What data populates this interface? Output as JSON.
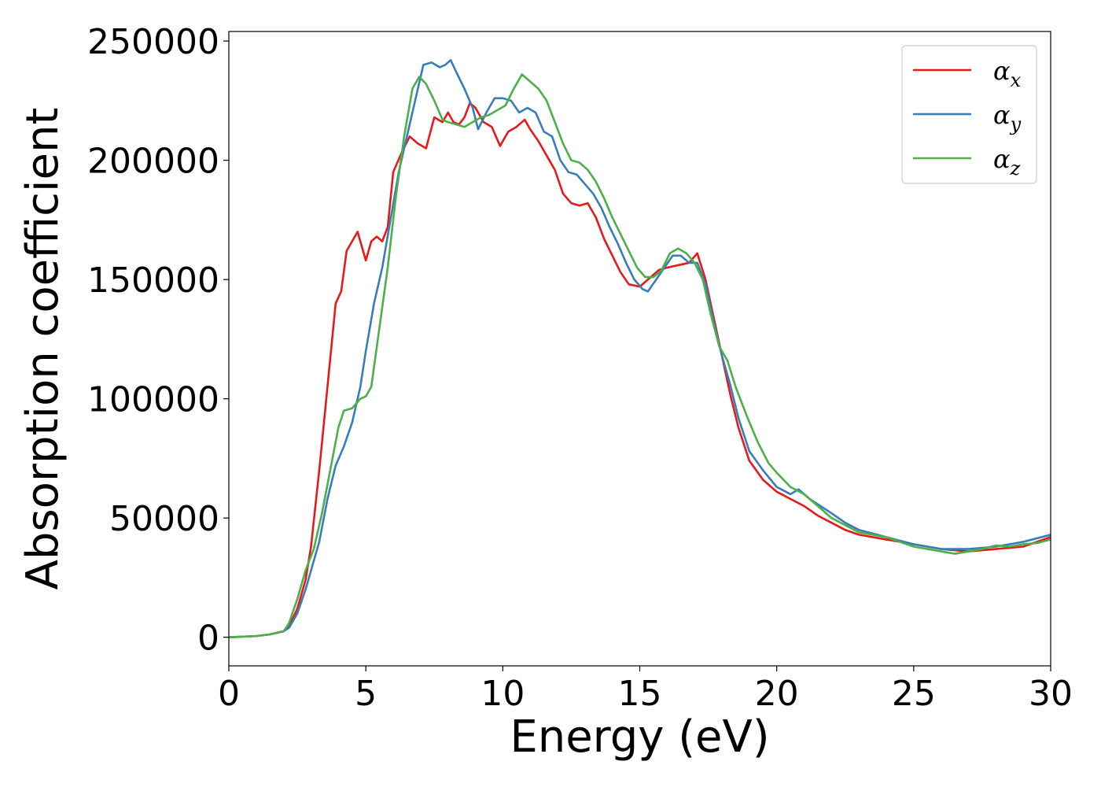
{
  "chart_data": {
    "type": "line",
    "xlabel": "Energy (eV)",
    "ylabel": "Absorption coefficient",
    "xlim": [
      0,
      30
    ],
    "ylim": [
      -12000,
      254000
    ],
    "xticks": [
      0,
      5,
      10,
      15,
      20,
      25,
      30
    ],
    "yticks": [
      0,
      50000,
      100000,
      150000,
      200000,
      250000
    ],
    "grid": false,
    "legend_position": "top-right",
    "series": [
      {
        "name": "α_x",
        "legend_symbol": "α",
        "legend_subscript": "x",
        "color": "#e41a1c",
        "x": [
          0,
          1,
          1.5,
          2,
          2.2,
          2.5,
          2.8,
          3.0,
          3.3,
          3.6,
          3.9,
          4.1,
          4.3,
          4.5,
          4.7,
          4.85,
          5.0,
          5.2,
          5.4,
          5.6,
          5.8,
          6.0,
          6.3,
          6.6,
          6.9,
          7.2,
          7.5,
          7.8,
          8.0,
          8.2,
          8.4,
          8.6,
          8.8,
          9.0,
          9.3,
          9.6,
          9.9,
          10.2,
          10.5,
          10.8,
          11.0,
          11.3,
          11.6,
          11.9,
          12.2,
          12.5,
          12.8,
          13.1,
          13.4,
          13.7,
          14.0,
          14.3,
          14.6,
          15.0,
          15.3,
          15.7,
          16.0,
          16.4,
          16.8,
          17.1,
          17.4,
          17.7,
          18.0,
          18.3,
          18.6,
          19.0,
          19.5,
          20.0,
          20.5,
          21.0,
          21.5,
          22.0,
          22.5,
          23.0,
          24.0,
          25.0,
          26.0,
          27.0,
          28.0,
          29.0,
          30.0
        ],
        "values": [
          0,
          500,
          1200,
          2500,
          4500,
          12000,
          24000,
          38000,
          70000,
          105000,
          140000,
          145000,
          162000,
          166000,
          170000,
          164000,
          158000,
          166000,
          168000,
          166000,
          172000,
          195000,
          203000,
          210000,
          207000,
          205000,
          218000,
          216000,
          220000,
          216000,
          215000,
          218000,
          224000,
          222000,
          216000,
          214000,
          206000,
          212000,
          214000,
          217000,
          213000,
          208000,
          202000,
          196000,
          186000,
          182000,
          181000,
          182000,
          176000,
          167000,
          160000,
          153000,
          148000,
          147000,
          150000,
          154000,
          155000,
          156000,
          157000,
          161000,
          150000,
          134000,
          118000,
          102000,
          88000,
          74000,
          66000,
          61000,
          58000,
          55000,
          51000,
          48000,
          45000,
          43000,
          41000,
          39000,
          37000,
          36000,
          37000,
          38000,
          42000
        ]
      },
      {
        "name": "α_y",
        "legend_symbol": "α",
        "legend_subscript": "y",
        "color": "#377eb8",
        "x": [
          0,
          1,
          1.5,
          2,
          2.2,
          2.5,
          2.8,
          3.0,
          3.3,
          3.6,
          3.9,
          4.2,
          4.5,
          4.8,
          5.0,
          5.3,
          5.6,
          5.9,
          6.2,
          6.5,
          6.8,
          7.1,
          7.4,
          7.7,
          7.9,
          8.1,
          8.3,
          8.6,
          8.9,
          9.1,
          9.4,
          9.7,
          10.0,
          10.3,
          10.6,
          10.9,
          11.2,
          11.5,
          11.8,
          12.1,
          12.4,
          12.7,
          13.0,
          13.3,
          13.6,
          13.9,
          14.2,
          14.5,
          14.8,
          15.1,
          15.3,
          15.6,
          15.9,
          16.2,
          16.5,
          16.8,
          17.1,
          17.4,
          17.7,
          18.0,
          18.3,
          18.6,
          19.0,
          19.5,
          20.0,
          20.5,
          20.8,
          21.2,
          21.6,
          22.0,
          22.5,
          23.0,
          24.0,
          25.0,
          26.0,
          27.0,
          28.0,
          28.5,
          29.0,
          30.0
        ],
        "values": [
          0,
          500,
          1200,
          2500,
          4000,
          10000,
          20000,
          28000,
          40000,
          58000,
          72000,
          80000,
          90000,
          105000,
          120000,
          140000,
          155000,
          175000,
          195000,
          210000,
          225000,
          240000,
          241000,
          239000,
          240000,
          242000,
          237000,
          230000,
          222000,
          213000,
          220000,
          226000,
          226000,
          225000,
          220000,
          222000,
          220000,
          212000,
          210000,
          200000,
          195000,
          194000,
          190000,
          186000,
          180000,
          172000,
          165000,
          157000,
          150000,
          146000,
          145000,
          150000,
          155000,
          160000,
          160000,
          157000,
          157000,
          148000,
          132000,
          118000,
          106000,
          92000,
          78000,
          70000,
          63000,
          60000,
          62000,
          58000,
          55000,
          52000,
          48000,
          45000,
          42000,
          39000,
          37000,
          37000,
          38000,
          39000,
          40000,
          43000
        ]
      },
      {
        "name": "α_z",
        "legend_symbol": "α",
        "legend_subscript": "z",
        "color": "#4daf4a",
        "x": [
          0,
          1,
          1.5,
          2,
          2.2,
          2.5,
          2.8,
          3.1,
          3.4,
          3.7,
          4.0,
          4.2,
          4.5,
          4.8,
          5.0,
          5.2,
          5.5,
          5.8,
          6.1,
          6.4,
          6.7,
          6.95,
          7.2,
          7.5,
          7.8,
          8.0,
          8.3,
          8.6,
          8.9,
          9.2,
          9.5,
          9.8,
          10.1,
          10.4,
          10.7,
          11.0,
          11.3,
          11.6,
          11.9,
          12.2,
          12.5,
          12.8,
          13.1,
          13.4,
          13.7,
          14.0,
          14.3,
          14.6,
          14.9,
          15.2,
          15.5,
          15.8,
          16.1,
          16.4,
          16.7,
          17.0,
          17.3,
          17.6,
          17.9,
          18.2,
          18.5,
          18.9,
          19.3,
          19.7,
          20.0,
          20.5,
          21.0,
          21.5,
          22.0,
          22.5,
          23.0,
          24.0,
          25.0,
          26.0,
          26.5,
          27.0,
          27.5,
          28.0,
          28.5,
          29.0,
          29.5,
          30.0
        ],
        "values": [
          0,
          500,
          1200,
          2500,
          6000,
          16000,
          28000,
          37000,
          52000,
          70000,
          88000,
          95000,
          96000,
          100000,
          101000,
          105000,
          130000,
          155000,
          185000,
          210000,
          230000,
          235000,
          232000,
          225000,
          217000,
          216000,
          215000,
          214000,
          216000,
          218000,
          219000,
          221000,
          223000,
          230000,
          236000,
          233000,
          230000,
          225000,
          216000,
          207000,
          200000,
          199000,
          196000,
          191000,
          184000,
          176000,
          169000,
          162000,
          155000,
          151000,
          151000,
          154000,
          161000,
          163000,
          161000,
          157000,
          150000,
          135000,
          122000,
          116000,
          105000,
          93000,
          82000,
          73000,
          69000,
          63000,
          60000,
          55000,
          50000,
          47000,
          44000,
          42000,
          38000,
          36000,
          35000,
          36000,
          37000,
          38500,
          38000,
          39000,
          39500,
          41000
        ]
      }
    ]
  }
}
